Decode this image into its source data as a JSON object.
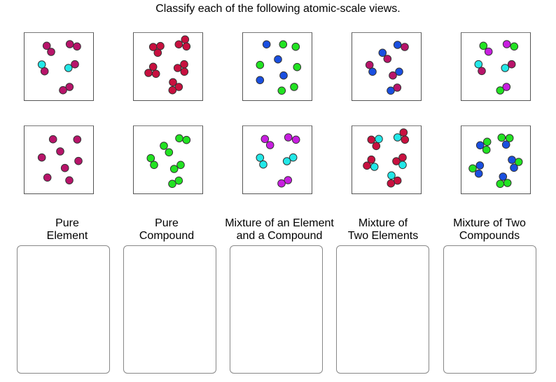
{
  "title": "Classify each of the following atomic-scale views.",
  "colors": {
    "dark_pink": "#b8146a",
    "crimson": "#c8103f",
    "cyan": "#22e8e8",
    "blue": "#1a4fe0",
    "green": "#22e322",
    "purple": "#c81ee0",
    "outline": "#333333"
  },
  "views": [
    {
      "id": "view-1",
      "composition": "pink diatomic molecules + pink-cyan diatomic molecules"
    },
    {
      "id": "view-2",
      "composition": "crimson triatomic molecules"
    },
    {
      "id": "view-3",
      "composition": "blue atoms + green atoms"
    },
    {
      "id": "view-4",
      "composition": "blue-pink diatomic molecules"
    },
    {
      "id": "view-5",
      "composition": "green-purple, cyan-pink, purple-green molecules"
    },
    {
      "id": "view-6",
      "composition": "pink atoms"
    },
    {
      "id": "view-7",
      "composition": "green diatomic molecules"
    },
    {
      "id": "view-8",
      "composition": "purple diatomic + cyan diatomic molecules"
    },
    {
      "id": "view-9",
      "composition": "crimson2-cyan triatomic molecules"
    },
    {
      "id": "view-10",
      "composition": "blue-green triatomic molecules"
    }
  ],
  "categories": [
    {
      "line1": "Pure",
      "line2": "Element"
    },
    {
      "line1": "Pure",
      "line2": "Compound"
    },
    {
      "line1": "Mixture of an Element",
      "line2": "and a Compound"
    },
    {
      "line1": "Mixture of",
      "line2": "Two Elements"
    },
    {
      "line1": "Mixture of Two",
      "line2": "Compounds"
    }
  ]
}
